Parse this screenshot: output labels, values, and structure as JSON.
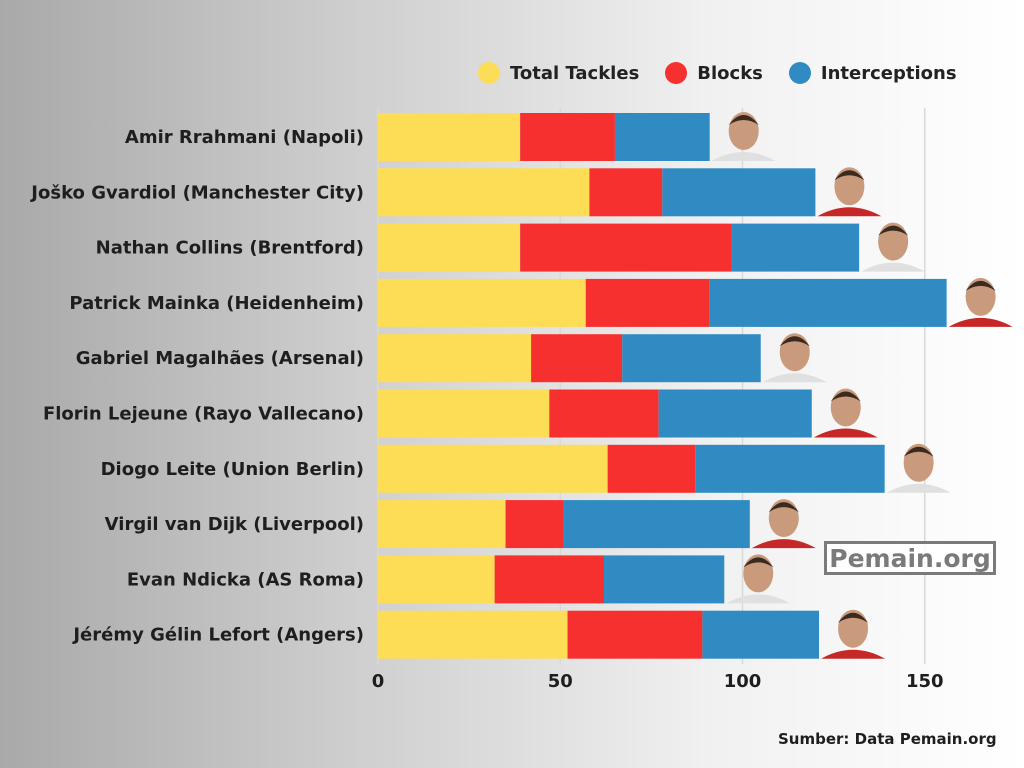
{
  "chart_data": {
    "type": "bar",
    "orientation": "horizontal",
    "stacked": true,
    "categories": [
      "Amir Rrahmani (Napoli)",
      "Joško Gvardiol (Manchester City)",
      "Nathan Collins (Brentford)",
      "Patrick Mainka (Heidenheim)",
      "Gabriel Magalhães (Arsenal)",
      "Florin Lejeune (Rayo Vallecano)",
      "Diogo Leite (Union Berlin)",
      "Virgil van Dijk (Liverpool)",
      "Evan Ndicka (AS Roma)",
      "Jérémy Gélin Lefort (Angers)"
    ],
    "series": [
      {
        "name": "Total Tackles",
        "color": "#FDDD55",
        "values": [
          39,
          58,
          39,
          57,
          42,
          47,
          63,
          35,
          32,
          52
        ]
      },
      {
        "name": "Blocks",
        "color": "#F5302F",
        "values": [
          26,
          20,
          58,
          34,
          25,
          30,
          24,
          16,
          30,
          37
        ]
      },
      {
        "name": "Interceptions",
        "color": "#2F8BC1",
        "values": [
          26,
          42,
          35,
          65,
          38,
          42,
          52,
          51,
          33,
          32
        ]
      }
    ],
    "xlim": [
      0,
      175
    ],
    "xticks": [
      "0",
      "50",
      "100",
      "150"
    ],
    "grid": true,
    "legend_position": "top-right"
  },
  "watermark": "Pemain.org",
  "source": "Sumber: Data Pemain.org",
  "colors": {
    "avatar_skin": "#c99a7b",
    "avatar_hair": "#3b2a20"
  }
}
